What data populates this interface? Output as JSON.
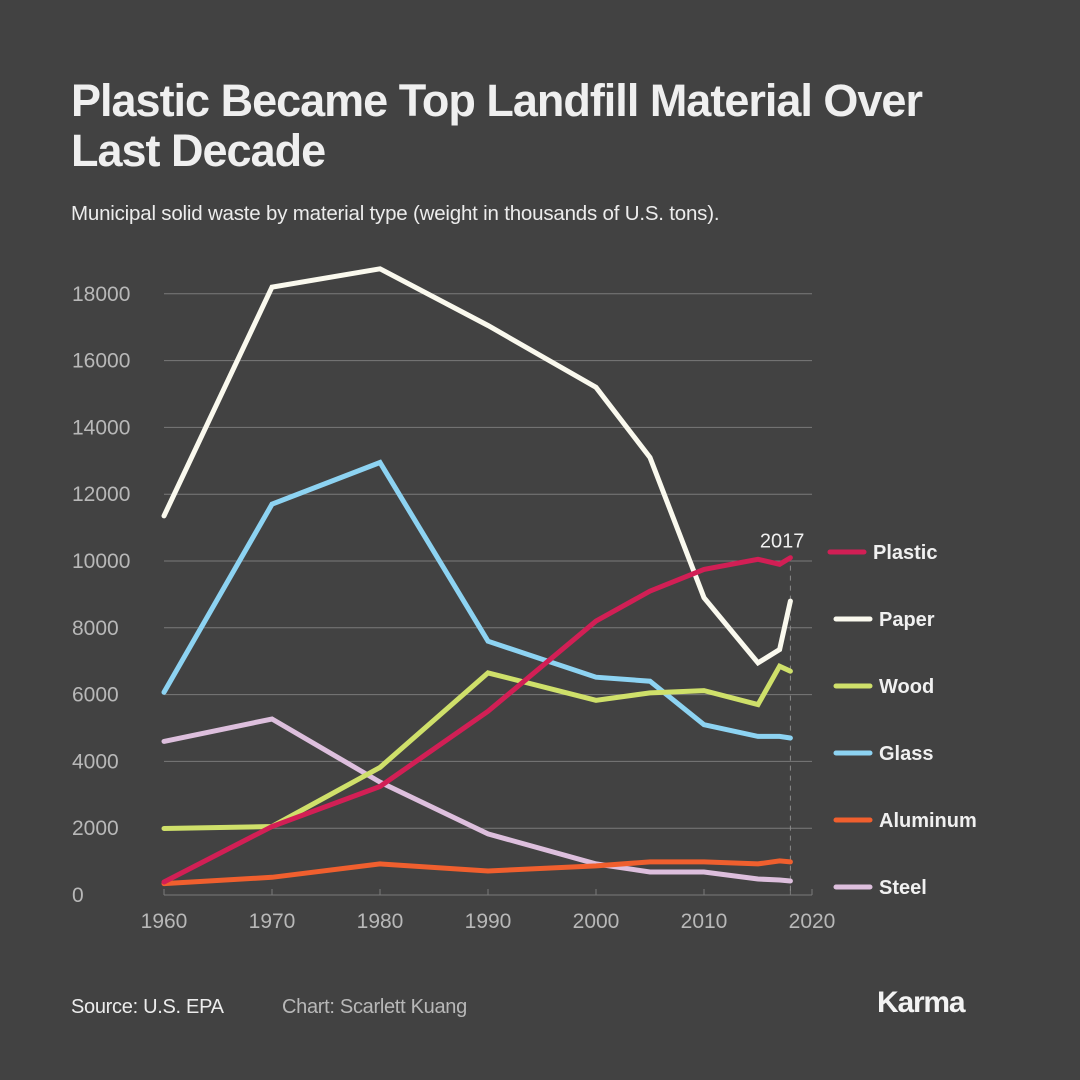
{
  "header": {
    "title": "Plastic Became Top Landfill Material Over Last Decade",
    "subtitle": "Municipal solid waste by material type (weight in thousands of U.S. tons)."
  },
  "footer": {
    "source": "Source: U.S. EPA",
    "credit": "Chart: Scarlett Kuang",
    "brand": "Karma"
  },
  "colors": {
    "background": "#424242",
    "grid": "#7a7a7a",
    "axis_text": "#b8b8b8"
  },
  "chart_data": {
    "type": "line",
    "title": "Plastic Became Top Landfill Material Over Last Decade",
    "subtitle": "Municipal solid waste by material type (weight in thousands of U.S. tons).",
    "xlabel": "",
    "ylabel": "",
    "x": [
      1960,
      1970,
      1980,
      1990,
      2000,
      2005,
      2010,
      2015,
      2017,
      2018
    ],
    "xlim": [
      1960,
      2020
    ],
    "ylim": [
      0,
      19000
    ],
    "xticks": [
      1960,
      1970,
      1980,
      1990,
      2000,
      2010,
      2020
    ],
    "xtick_labels": [
      "1960",
      "1970",
      "1980",
      "1990",
      "2000",
      "2010",
      "2020"
    ],
    "yticks": [
      0,
      2000,
      4000,
      6000,
      8000,
      10000,
      12000,
      14000,
      16000,
      18000
    ],
    "ytick_labels": [
      "0",
      "2000",
      "4000",
      "6000",
      "8000",
      "10000",
      "12000",
      "14000",
      "16000",
      "18000"
    ],
    "grid": true,
    "legend_position": "right",
    "annotations": [
      {
        "text": "2017",
        "x": 2018,
        "y": 10100
      }
    ],
    "marker_line_x": 2018,
    "series": [
      {
        "name": "Plastic",
        "color": "#D21F55",
        "values": [
          390,
          2050,
          3250,
          5500,
          8200,
          9100,
          9750,
          10050,
          9900,
          10100
        ]
      },
      {
        "name": "Paper",
        "color": "#FAF9EE",
        "values": [
          11350,
          18200,
          18750,
          17050,
          15200,
          13100,
          8900,
          6950,
          7350,
          8800
        ]
      },
      {
        "name": "Wood",
        "color": "#CFE06A",
        "values": [
          1990,
          2050,
          3820,
          6650,
          5830,
          6050,
          6120,
          5700,
          6850,
          6700
        ]
      },
      {
        "name": "Glass",
        "color": "#8DD3F2",
        "values": [
          6070,
          11700,
          12950,
          7600,
          6520,
          6400,
          5100,
          4750,
          4750,
          4700
        ]
      },
      {
        "name": "Aluminum",
        "color": "#F05F2E",
        "values": [
          340,
          530,
          930,
          720,
          870,
          990,
          990,
          930,
          1020,
          990
        ]
      },
      {
        "name": "Steel",
        "color": "#DDBFDD",
        "values": [
          4600,
          5270,
          3380,
          1830,
          930,
          690,
          690,
          480,
          450,
          420
        ]
      }
    ]
  }
}
